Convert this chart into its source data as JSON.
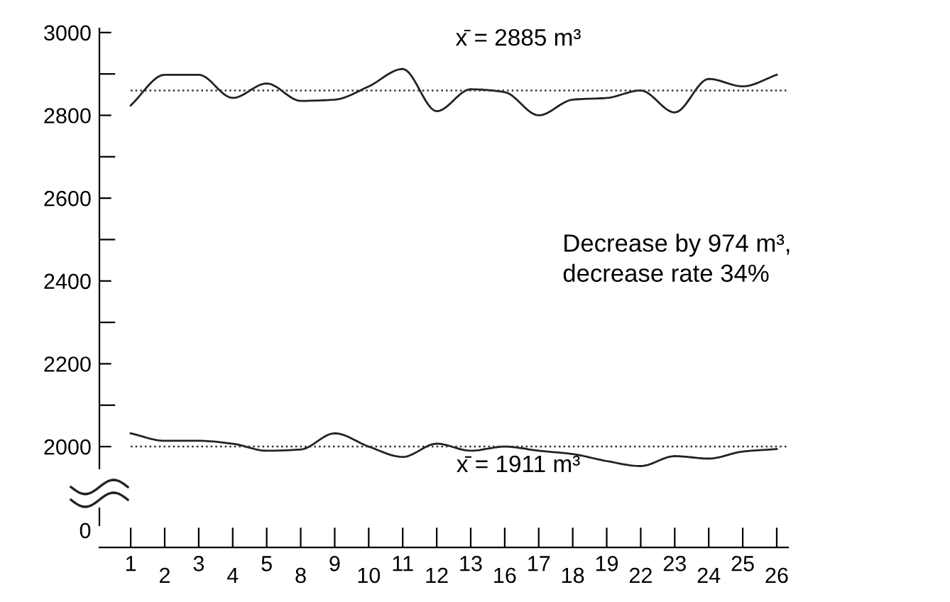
{
  "chart_data": {
    "type": "line",
    "categories": [
      "1",
      "2",
      "3",
      "4",
      "5",
      "8",
      "9",
      "10",
      "11",
      "12",
      "13",
      "16",
      "17",
      "18",
      "19",
      "22",
      "23",
      "24",
      "25",
      "26"
    ],
    "series": [
      {
        "color": "#222222",
        "values": [
          2824,
          2898,
          2898,
          2842,
          2877,
          2835,
          2838,
          2870,
          2912,
          2810,
          2863,
          2856,
          2800,
          2838,
          2842,
          2860,
          2807,
          2888,
          2870,
          2898
        ]
      },
      {
        "color": "#222222",
        "values": [
          2032,
          2014,
          2014,
          2007,
          1990,
          1993,
          2032,
          2000,
          1975,
          2007,
          1990,
          2000,
          1990,
          1982,
          1965,
          1953,
          1977,
          1971,
          1988,
          1994
        ]
      }
    ],
    "ylim": [
      1947,
      3010
    ],
    "yticks": [
      2000,
      {
        "value": 2100,
        "label": null
      },
      2200,
      {
        "value": 2300,
        "label": null
      },
      2400,
      {
        "value": 2500,
        "label": null
      },
      2600,
      {
        "value": 2700,
        "label": null
      },
      2800,
      {
        "value": 2900,
        "label": null
      },
      3000
    ],
    "ref_lines": [
      {
        "axis": "y",
        "value": 2860,
        "line_style": "dotted"
      },
      {
        "axis": "y",
        "value": 2000,
        "line_style": "dotted"
      }
    ],
    "annotations": [
      "x̄ = 2885 m³",
      "x̄ = 1911 m³",
      "Decrease by 974 m³,\ndecrease rate 34%",
      "0"
    ],
    "grid": false,
    "legend": false,
    "marker": "none",
    "line_style": "solid"
  }
}
